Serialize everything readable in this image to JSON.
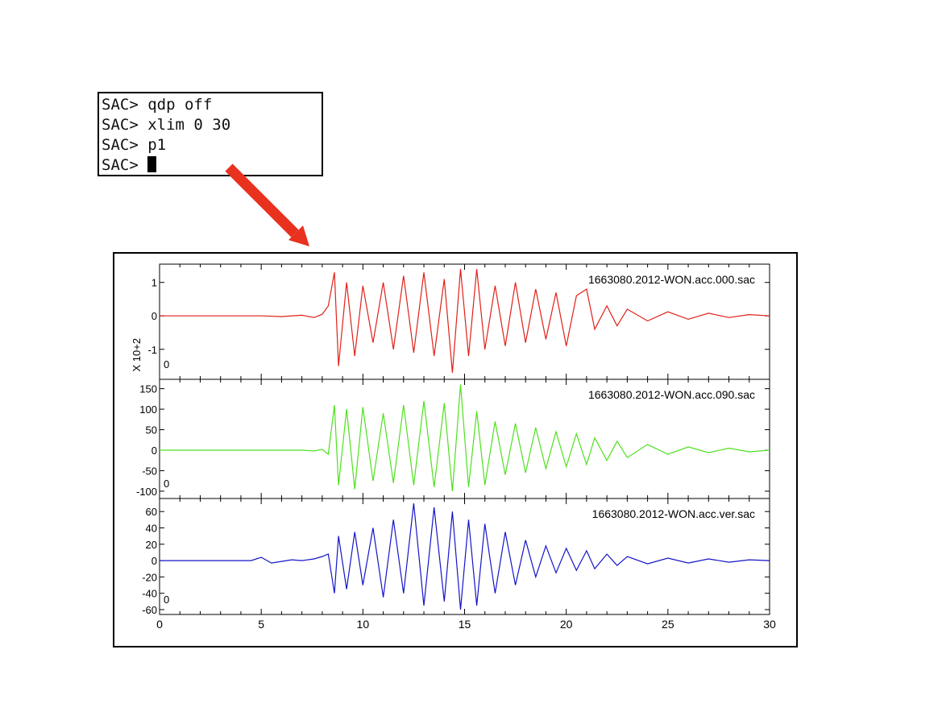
{
  "terminal": {
    "lines": [
      "SAC> qdp off",
      "SAC> xlim 0 30",
      "SAC> p1",
      "SAC> "
    ]
  },
  "colors": {
    "arrow": "#e8321f",
    "trace_000": "#e02018",
    "trace_090": "#4ee01e",
    "trace_ver": "#1414c8"
  },
  "chart_data": {
    "type": "line",
    "xlim": [
      0,
      30
    ],
    "x_ticks": [
      "0",
      "5",
      "10",
      "15",
      "20",
      "25",
      "30"
    ],
    "grid": false,
    "panels": [
      {
        "file_label": "1663080.2012-WON.acc.000.sac",
        "series_color": "#e02018",
        "ylim": [
          -1.8,
          1.45
        ],
        "y_ticks": [
          1,
          0,
          -1
        ],
        "y_tick_labels": [
          "1",
          "0",
          "-1"
        ],
        "scale_label": "X 10+2",
        "zero_mark": "0",
        "x": [
          0,
          5,
          6,
          7,
          7.6,
          8.0,
          8.3,
          8.6,
          8.8,
          9.2,
          9.6,
          10.0,
          10.5,
          11.0,
          11.5,
          12.0,
          12.5,
          13.0,
          13.5,
          14.0,
          14.4,
          14.8,
          15.2,
          15.6,
          16.0,
          16.5,
          17.0,
          17.5,
          18.0,
          18.5,
          19.0,
          19.5,
          20.0,
          20.5,
          21.0,
          21.4,
          22.0,
          22.5,
          23.0,
          24.0,
          25.0,
          26.0,
          27.0,
          28.0,
          29.0,
          30.0
        ],
        "y": [
          0,
          0,
          -0.02,
          0.02,
          -0.05,
          0.05,
          0.3,
          1.3,
          -1.5,
          1.0,
          -1.2,
          0.9,
          -0.8,
          1.0,
          -1.0,
          1.2,
          -1.1,
          1.3,
          -1.2,
          1.1,
          -1.7,
          1.4,
          -1.2,
          1.4,
          -1.0,
          0.9,
          -0.9,
          1.0,
          -0.8,
          0.8,
          -0.7,
          0.7,
          -0.9,
          0.6,
          0.8,
          -0.4,
          0.3,
          -0.3,
          0.2,
          -0.15,
          0.12,
          -0.1,
          0.08,
          -0.05,
          0.04,
          0
        ]
      },
      {
        "file_label": "1663080.2012-WON.acc.090.sac",
        "series_color": "#4ee01e",
        "ylim": [
          -110,
          165
        ],
        "y_ticks": [
          150,
          100,
          50,
          0,
          -50,
          -100
        ],
        "y_tick_labels": [
          "150",
          "100",
          "50",
          "0",
          "-50",
          "-100"
        ],
        "zero_mark": "0",
        "x": [
          0,
          5,
          6,
          7,
          7.6,
          8.0,
          8.3,
          8.6,
          8.8,
          9.2,
          9.6,
          10.0,
          10.5,
          11.0,
          11.5,
          12.0,
          12.5,
          13.0,
          13.5,
          14.0,
          14.4,
          14.8,
          15.2,
          15.6,
          16.0,
          16.5,
          17.0,
          17.5,
          18.0,
          18.5,
          19.0,
          19.5,
          20.0,
          20.5,
          21.0,
          21.4,
          22.0,
          22.5,
          23.0,
          24.0,
          25.0,
          26.0,
          27.0,
          28.0,
          29.0,
          30.0
        ],
        "y": [
          0,
          0,
          0,
          0,
          -2,
          2,
          -10,
          110,
          -85,
          100,
          -95,
          105,
          -75,
          90,
          -80,
          110,
          -85,
          120,
          -90,
          115,
          -100,
          160,
          -90,
          95,
          -85,
          70,
          -60,
          65,
          -55,
          55,
          -45,
          45,
          -40,
          40,
          -35,
          30,
          -25,
          22,
          -18,
          14,
          -10,
          8,
          -6,
          5,
          -4,
          0
        ]
      },
      {
        "file_label": "1663080.2012-WON.acc.ver.sac",
        "series_color": "#1414c8",
        "ylim": [
          -62,
          72
        ],
        "y_ticks": [
          60,
          40,
          20,
          0,
          -20,
          -40,
          -60
        ],
        "y_tick_labels": [
          "60",
          "40",
          "20",
          "0",
          "-20",
          "-40",
          "-60"
        ],
        "zero_mark": "0",
        "x": [
          0,
          4.5,
          5.0,
          5.5,
          6.0,
          6.5,
          7.0,
          7.6,
          8.0,
          8.3,
          8.6,
          8.8,
          9.2,
          9.6,
          10.0,
          10.5,
          11.0,
          11.5,
          12.0,
          12.5,
          13.0,
          13.5,
          14.0,
          14.4,
          14.8,
          15.2,
          15.6,
          16.0,
          16.5,
          17.0,
          17.5,
          18.0,
          18.5,
          19.0,
          19.5,
          20.0,
          20.5,
          21.0,
          21.4,
          22.0,
          22.5,
          23.0,
          24.0,
          25.0,
          26.0,
          27.0,
          28.0,
          29.0,
          30.0
        ],
        "y": [
          0,
          0,
          4,
          -3,
          -1,
          1,
          0,
          2,
          5,
          8,
          -40,
          30,
          -35,
          35,
          -30,
          40,
          -45,
          50,
          -40,
          70,
          -55,
          65,
          -50,
          60,
          -60,
          50,
          -55,
          45,
          -40,
          35,
          -30,
          25,
          -20,
          18,
          -15,
          15,
          -12,
          12,
          -10,
          8,
          -6,
          5,
          -4,
          3,
          -3,
          2,
          -2,
          1,
          0
        ]
      }
    ]
  }
}
